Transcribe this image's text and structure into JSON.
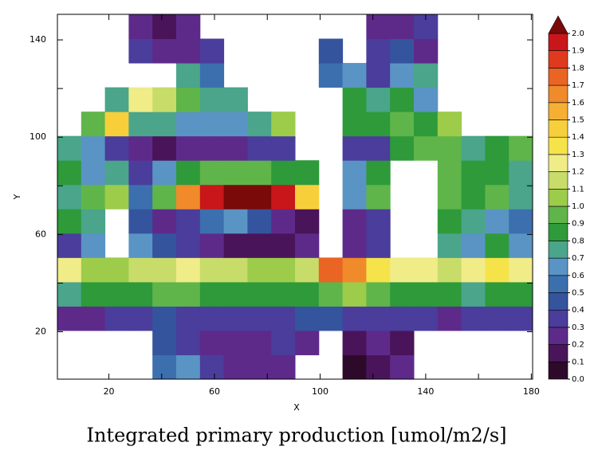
{
  "chart_data": {
    "type": "heatmap",
    "title": "Integrated primary production [umol/m2/s]",
    "x_label": "X",
    "y_label": "Y",
    "xlim": [
      0.5,
      180.5
    ],
    "ylim": [
      0.5,
      150.5
    ],
    "xticks": [
      20,
      60,
      100,
      140,
      180
    ],
    "xminorticks": [
      40,
      80,
      120,
      160
    ],
    "yticks": [
      20,
      60,
      100,
      140
    ],
    "yminorticks": [
      40,
      80,
      120
    ],
    "x": [
      5,
      14,
      23,
      32,
      41,
      50,
      59,
      68,
      77,
      86,
      95,
      104,
      113,
      122,
      131,
      140,
      149,
      158,
      167,
      176
    ],
    "y": [
      5.5,
      15.5,
      25.5,
      35.5,
      45.5,
      55.5,
      65.5,
      75.5,
      85.5,
      95.5,
      105.5,
      115.5,
      125.5,
      135.5,
      145.5
    ],
    "z": [
      [
        null,
        null,
        null,
        null,
        0.5,
        0.6,
        0.3,
        0.2,
        0.2,
        0.2,
        null,
        null,
        0.05,
        0.1,
        0.2,
        null,
        null,
        null,
        null,
        null
      ],
      [
        null,
        null,
        null,
        null,
        0.4,
        0.3,
        0.2,
        0.2,
        0.2,
        0.3,
        0.2,
        null,
        0.1,
        0.2,
        0.15,
        null,
        null,
        null,
        null,
        null
      ],
      [
        0.2,
        0.2,
        0.3,
        0.3,
        0.4,
        0.3,
        0.3,
        0.3,
        0.3,
        0.3,
        0.4,
        0.4,
        0.3,
        0.3,
        0.3,
        0.3,
        0.2,
        0.3,
        0.3,
        0.3
      ],
      [
        0.7,
        0.8,
        0.8,
        0.8,
        0.9,
        0.9,
        0.8,
        0.8,
        0.8,
        0.8,
        0.8,
        0.9,
        1.0,
        0.9,
        0.8,
        0.8,
        0.8,
        0.7,
        0.8,
        0.8
      ],
      [
        1.2,
        1.0,
        1.0,
        1.1,
        1.1,
        1.2,
        1.1,
        1.1,
        1.0,
        1.0,
        1.1,
        1.7,
        1.6,
        1.3,
        1.2,
        1.2,
        1.1,
        1.2,
        1.3,
        1.2
      ],
      [
        0.3,
        0.6,
        null,
        0.6,
        0.4,
        0.3,
        0.2,
        0.1,
        0.1,
        0.1,
        0.2,
        null,
        0.2,
        0.3,
        null,
        null,
        0.7,
        0.6,
        0.8,
        0.6
      ],
      [
        0.8,
        0.7,
        null,
        0.4,
        0.2,
        0.3,
        0.5,
        0.6,
        0.4,
        0.2,
        0.1,
        null,
        0.2,
        0.3,
        null,
        null,
        0.8,
        0.7,
        0.6,
        0.5
      ],
      [
        0.7,
        0.9,
        1.0,
        0.5,
        0.9,
        1.6,
        1.9,
        2.0,
        2.0,
        1.9,
        1.4,
        null,
        0.6,
        0.9,
        null,
        null,
        0.9,
        0.8,
        0.9,
        0.7
      ],
      [
        0.8,
        0.6,
        0.7,
        0.3,
        0.6,
        0.8,
        0.9,
        0.9,
        0.9,
        0.8,
        0.8,
        null,
        0.6,
        0.8,
        null,
        null,
        0.9,
        0.8,
        0.8,
        0.7
      ],
      [
        0.7,
        0.6,
        0.3,
        0.2,
        0.1,
        0.2,
        0.2,
        0.2,
        0.3,
        0.3,
        null,
        null,
        0.3,
        0.3,
        0.8,
        0.9,
        0.9,
        0.7,
        0.8,
        0.9
      ],
      [
        null,
        0.9,
        1.4,
        0.7,
        0.7,
        0.6,
        0.6,
        0.6,
        0.7,
        1.0,
        null,
        null,
        0.8,
        0.8,
        0.9,
        0.8,
        1.0,
        null,
        null,
        null
      ],
      [
        null,
        null,
        0.7,
        1.2,
        1.1,
        0.9,
        0.7,
        0.7,
        null,
        null,
        null,
        null,
        0.8,
        0.7,
        0.8,
        0.6,
        null,
        null,
        null,
        null
      ],
      [
        null,
        null,
        null,
        null,
        null,
        0.7,
        0.5,
        null,
        null,
        null,
        null,
        0.5,
        0.6,
        0.3,
        0.6,
        0.7,
        null,
        null,
        null,
        null
      ],
      [
        null,
        null,
        null,
        0.3,
        0.2,
        0.2,
        0.3,
        null,
        null,
        null,
        null,
        0.4,
        null,
        0.3,
        0.4,
        0.2,
        null,
        null,
        null,
        null
      ],
      [
        null,
        null,
        null,
        0.2,
        0.1,
        0.2,
        null,
        null,
        null,
        null,
        null,
        null,
        null,
        0.2,
        0.2,
        0.3,
        null,
        null,
        null,
        null
      ]
    ],
    "colorbar": {
      "levels": [
        {
          "value": 0,
          "label": "0.0"
        },
        0.1,
        0.2,
        0.3,
        0.4,
        0.5,
        0.6,
        0.7,
        0.8,
        0.9,
        {
          "value": 1,
          "label": "1.0"
        },
        1.1,
        1.2,
        1.3,
        1.4,
        1.5,
        1.6,
        1.7,
        1.8,
        1.9,
        {
          "value": 2,
          "label": "2.0"
        }
      ],
      "colors": [
        "#2e0a2a",
        "#4a145a",
        "#5e2a8a",
        "#4a3d9c",
        "#34549e",
        "#3c6fae",
        "#5a94c4",
        "#4aa58a",
        "#2e9a3a",
        "#5fb54a",
        "#9ccc4a",
        "#c8dc6a",
        "#f0ec88",
        "#f6e34a",
        "#f7cf3a",
        "#f5b034",
        "#f08a2a",
        "#ea6424",
        "#e03a1e",
        "#c8161a",
        "#7a0a0a"
      ],
      "extend": "max"
    }
  }
}
